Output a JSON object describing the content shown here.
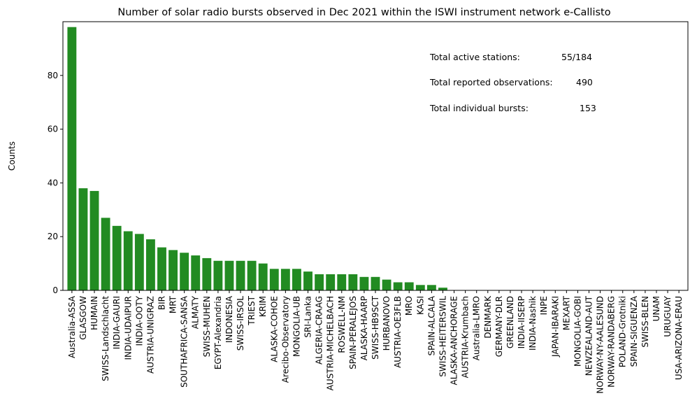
{
  "chart_data": {
    "type": "bar",
    "title": "Number of solar radio bursts observed in Dec 2021 within the ISWI instrument network e-Callisto",
    "xlabel": "",
    "ylabel": "Counts",
    "ylim": [
      0,
      100
    ],
    "yticks": [
      0,
      20,
      40,
      60,
      80
    ],
    "bar_color": "#228b22",
    "grid": false,
    "categories": [
      "Australia-ASSA",
      "GLASGOW",
      "HUMAIN",
      "SWISS-Landschlacht",
      "INDIA-GAURI",
      "INDIA-UDAIPUR",
      "INDIA-OOTY",
      "AUSTRIA-UNIGRAZ",
      "BIR",
      "MRT",
      "SOUTHAFRICA-SANSA",
      "ALMATY",
      "SWISS-MUHEN",
      "EGYPT-Alexandria",
      "INDONESIA",
      "SWISS-IRSOL",
      "TRIEST",
      "KRIM",
      "ALASKA-COHOE",
      "Arecibo-Observatory",
      "MONGOLIA-UB",
      "SRI-Lanka",
      "ALGERIA-CRAAG",
      "AUSTRIA-MICHELBACH",
      "ROSWELL-NM",
      "SPAIN-PERALEJOS",
      "ALASKA-HAARP",
      "SWISS-HB9SCT",
      "HURBANOVO",
      "AUSTRIA-OE3FLB",
      "MRO",
      "KASI",
      "SPAIN-ALCALA",
      "SWISS-HEITERSWIL",
      "ALASKA-ANCHORAGE",
      "AUSTRIA-Krumbach",
      "Australia-LMRO",
      "DENMARK",
      "GERMANY-DLR",
      "GREENLAND",
      "INDIA-IISERP",
      "INDIA-Nashik",
      "INPE",
      "JAPAN-IBARAKI",
      "MEXART",
      "MONGOLIA-GOBI",
      "NEWZEALAND-AUT",
      "NORWAY-NY-AALESUND",
      "NORWAY-RANDABERG",
      "POLAND-Grotniki",
      "SPAIN-SIGUENZA",
      "SWISS-BLEN",
      "UNAM",
      "URUGUAY",
      "USA-ARIZONA-ERAU"
    ],
    "values": [
      98,
      38,
      37,
      27,
      24,
      22,
      21,
      19,
      16,
      15,
      14,
      13,
      12,
      11,
      11,
      11,
      11,
      10,
      8,
      8,
      8,
      7,
      6,
      6,
      6,
      6,
      5,
      5,
      4,
      3,
      3,
      2,
      2,
      1,
      0,
      0,
      0,
      0,
      0,
      0,
      0,
      0,
      0,
      0,
      0,
      0,
      0,
      0,
      0,
      0,
      0,
      0,
      0,
      0,
      0
    ],
    "annotations": [
      {
        "label": "Total active stations:",
        "value": "55/184"
      },
      {
        "label": "Total reported observations:",
        "value": "490"
      },
      {
        "label": "Total individual bursts:",
        "value": "153"
      }
    ]
  }
}
